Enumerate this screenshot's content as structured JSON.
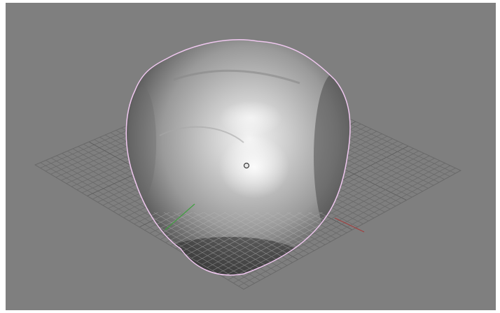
{
  "viewport": {
    "background_color": "#7f7f7f",
    "grid_color": "#6a6a6a",
    "selection_outline_color": "#f0c8f0",
    "x_axis_color": "#a04040",
    "y_axis_color": "#40a040",
    "object_origin_icon": "object-origin-icon"
  }
}
